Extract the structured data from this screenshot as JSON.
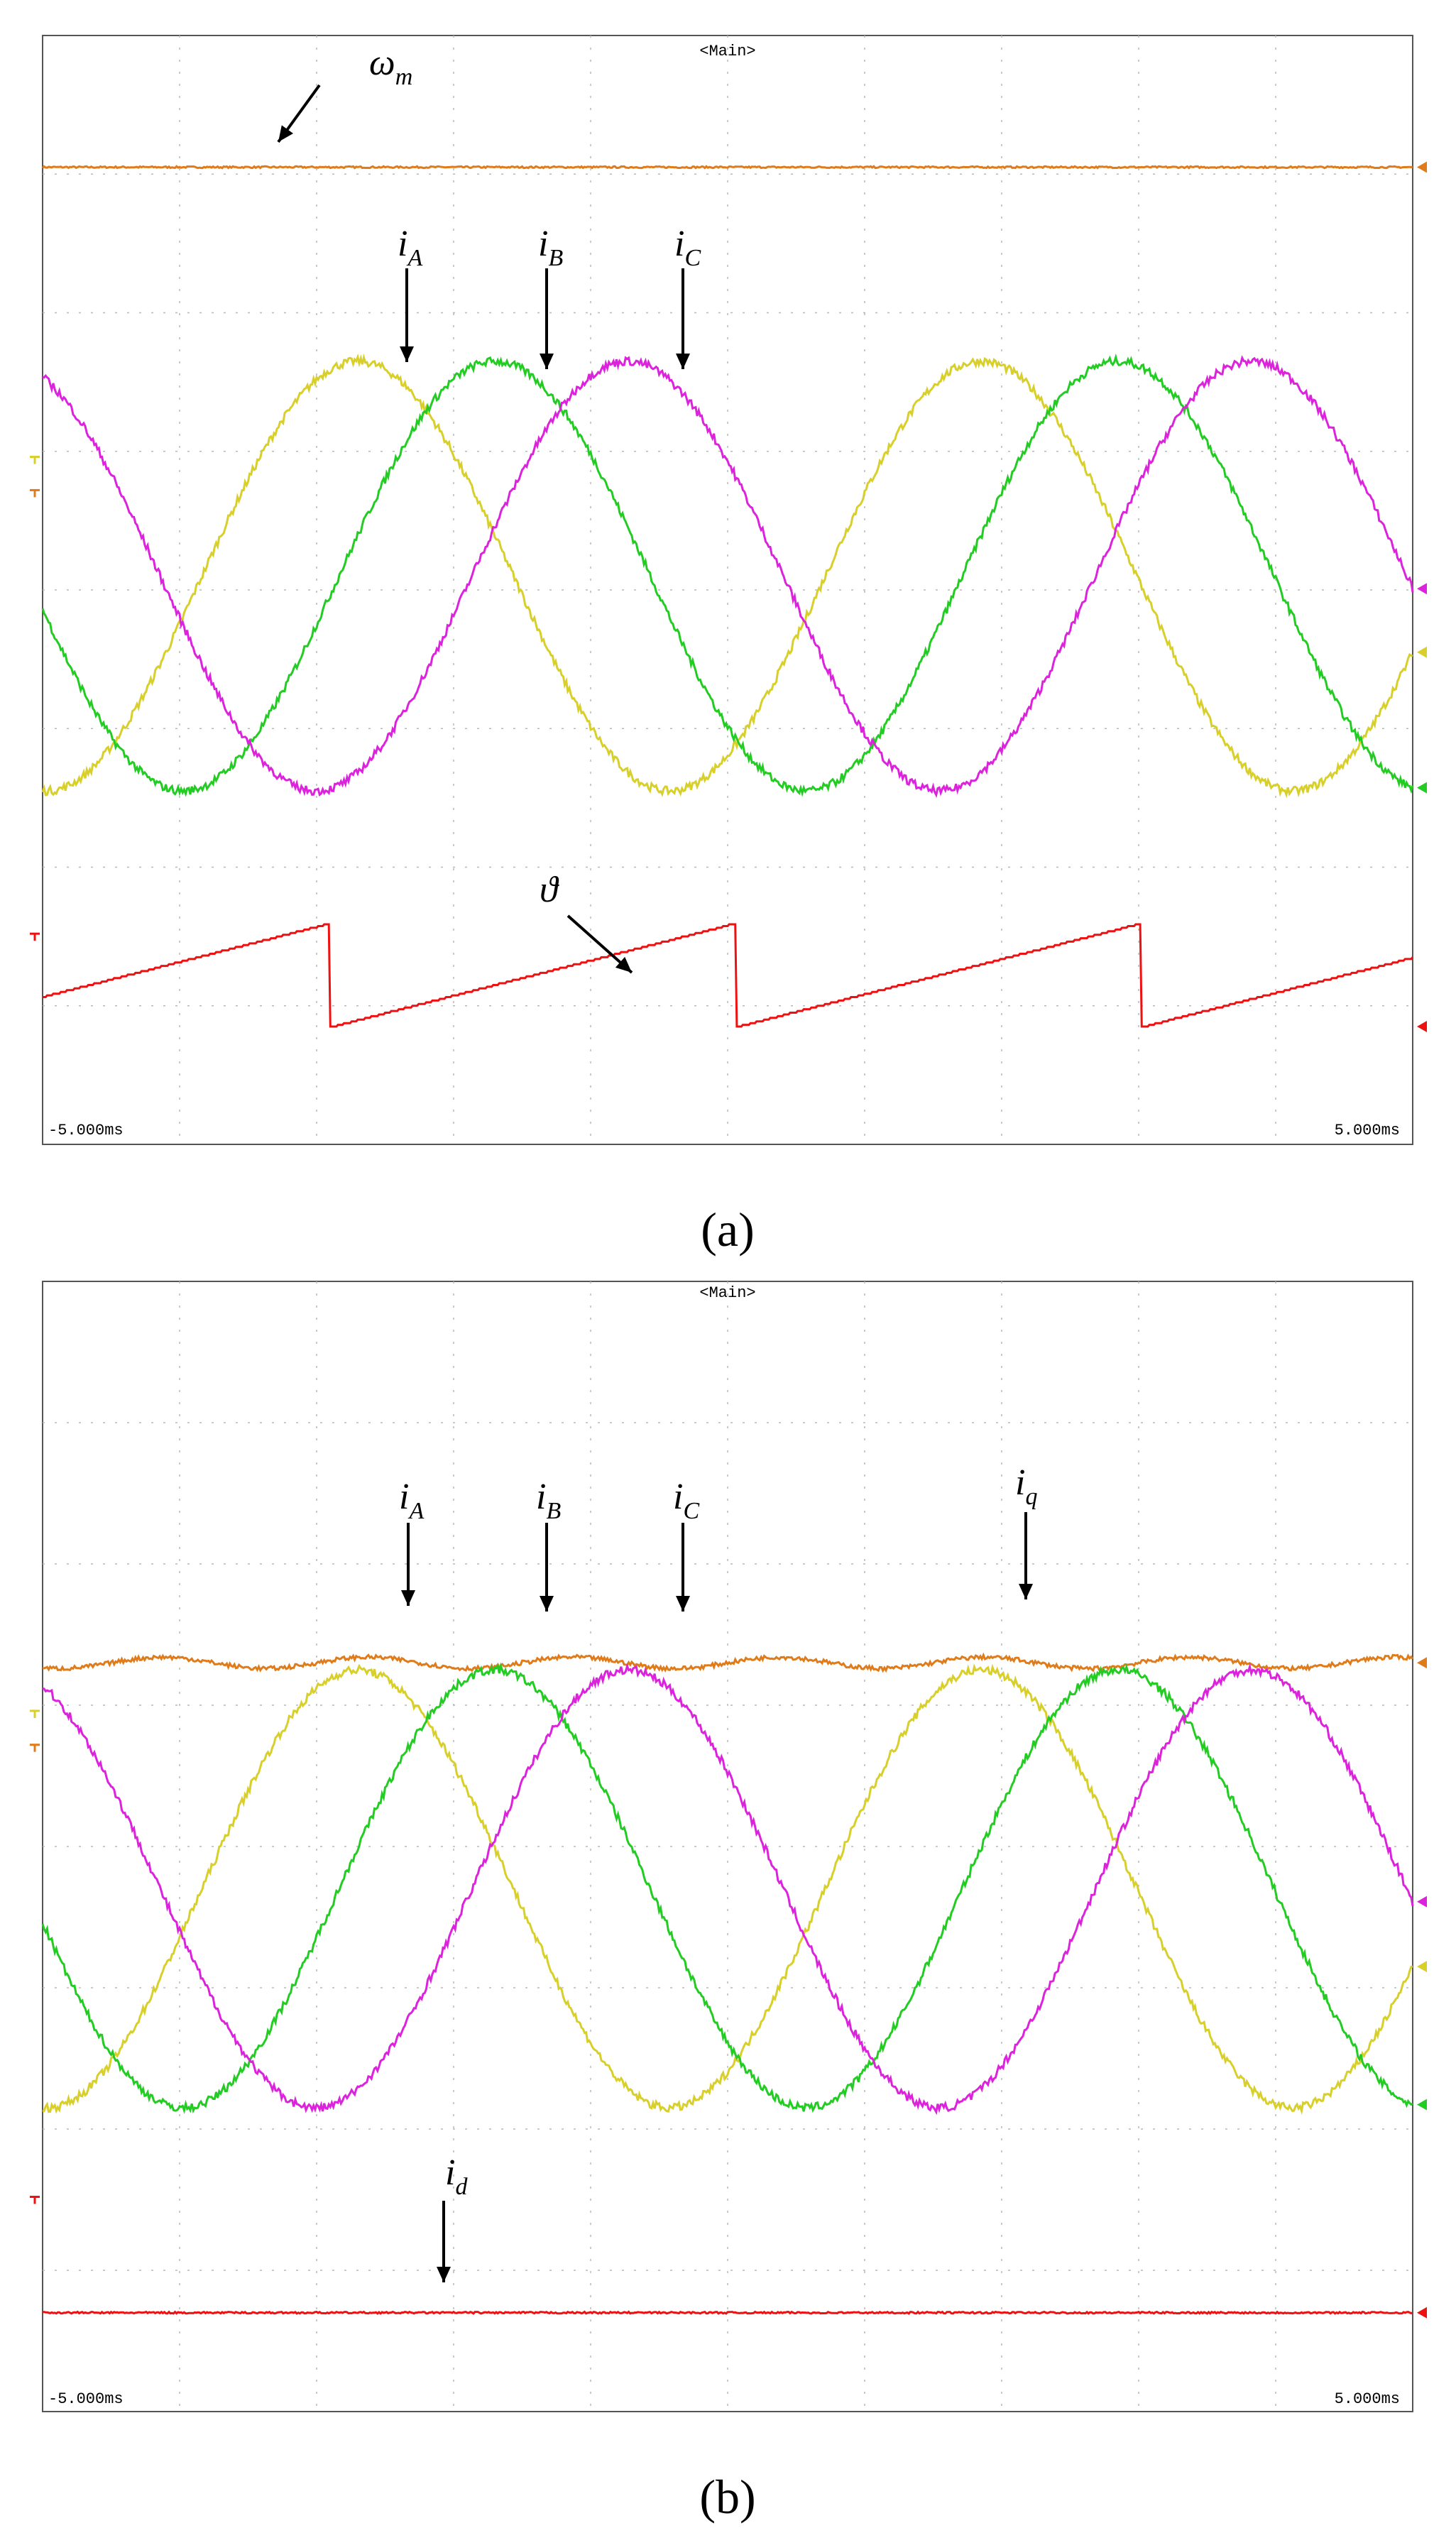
{
  "chart_data": [
    {
      "type": "line",
      "panel_label": "(a)",
      "header": "<Main>",
      "x_start_label": "-5.000ms",
      "x_end_label": "5.000ms",
      "xlim": [
        -5,
        5
      ],
      "x_unit": "ms",
      "grid": "dashed 10x8 divisions",
      "phase_period_ms": 4.55,
      "sawtooth_period_ms": 2.96,
      "series": [
        {
          "name": "ω_m",
          "color": "#e07b1a",
          "shape": "constant",
          "level_div": 7.05
        },
        {
          "name": "i_A",
          "color": "#d8cf2a",
          "shape": "sine",
          "center_div": 4.1,
          "amplitude_div": 1.55,
          "peak_time_ms": -2.7
        },
        {
          "name": "i_B",
          "color": "#22cc22",
          "shape": "sine",
          "center_div": 4.1,
          "amplitude_div": 1.55,
          "peak_time_ms": -1.7
        },
        {
          "name": "i_C",
          "color": "#dd22dd",
          "shape": "sine",
          "center_div": 4.1,
          "amplitude_div": 1.55,
          "peak_time_ms": -0.73
        },
        {
          "name": "ϑ",
          "color": "#ee1111",
          "shape": "sawtooth",
          "low_div": 0.85,
          "high_div": 1.6,
          "reset_times_ms": [
            -2.9,
            0.06,
            3.02
          ]
        }
      ]
    },
    {
      "type": "line",
      "panel_label": "(b)",
      "header": "<Main>",
      "x_start_label": "-5.000ms",
      "x_end_label": "5.000ms",
      "xlim": [
        -5,
        5
      ],
      "x_unit": "ms",
      "grid": "dashed 10x8 divisions",
      "phase_period_ms": 4.55,
      "series": [
        {
          "name": "i_q",
          "color": "#e07b1a",
          "shape": "constant-ripple",
          "level_div": 5.3
        },
        {
          "name": "i_A",
          "color": "#d8cf2a",
          "shape": "sine",
          "center_div": 3.7,
          "amplitude_div": 1.55,
          "peak_time_ms": -2.7
        },
        {
          "name": "i_B",
          "color": "#22cc22",
          "shape": "sine",
          "center_div": 3.7,
          "amplitude_div": 1.55,
          "peak_time_ms": -1.7
        },
        {
          "name": "i_C",
          "color": "#dd22dd",
          "shape": "sine",
          "center_div": 3.7,
          "amplitude_div": 1.55,
          "peak_time_ms": -0.73
        },
        {
          "name": "i_d",
          "color": "#ee1111",
          "shape": "constant",
          "level_div": 0.7
        }
      ]
    }
  ]
}
